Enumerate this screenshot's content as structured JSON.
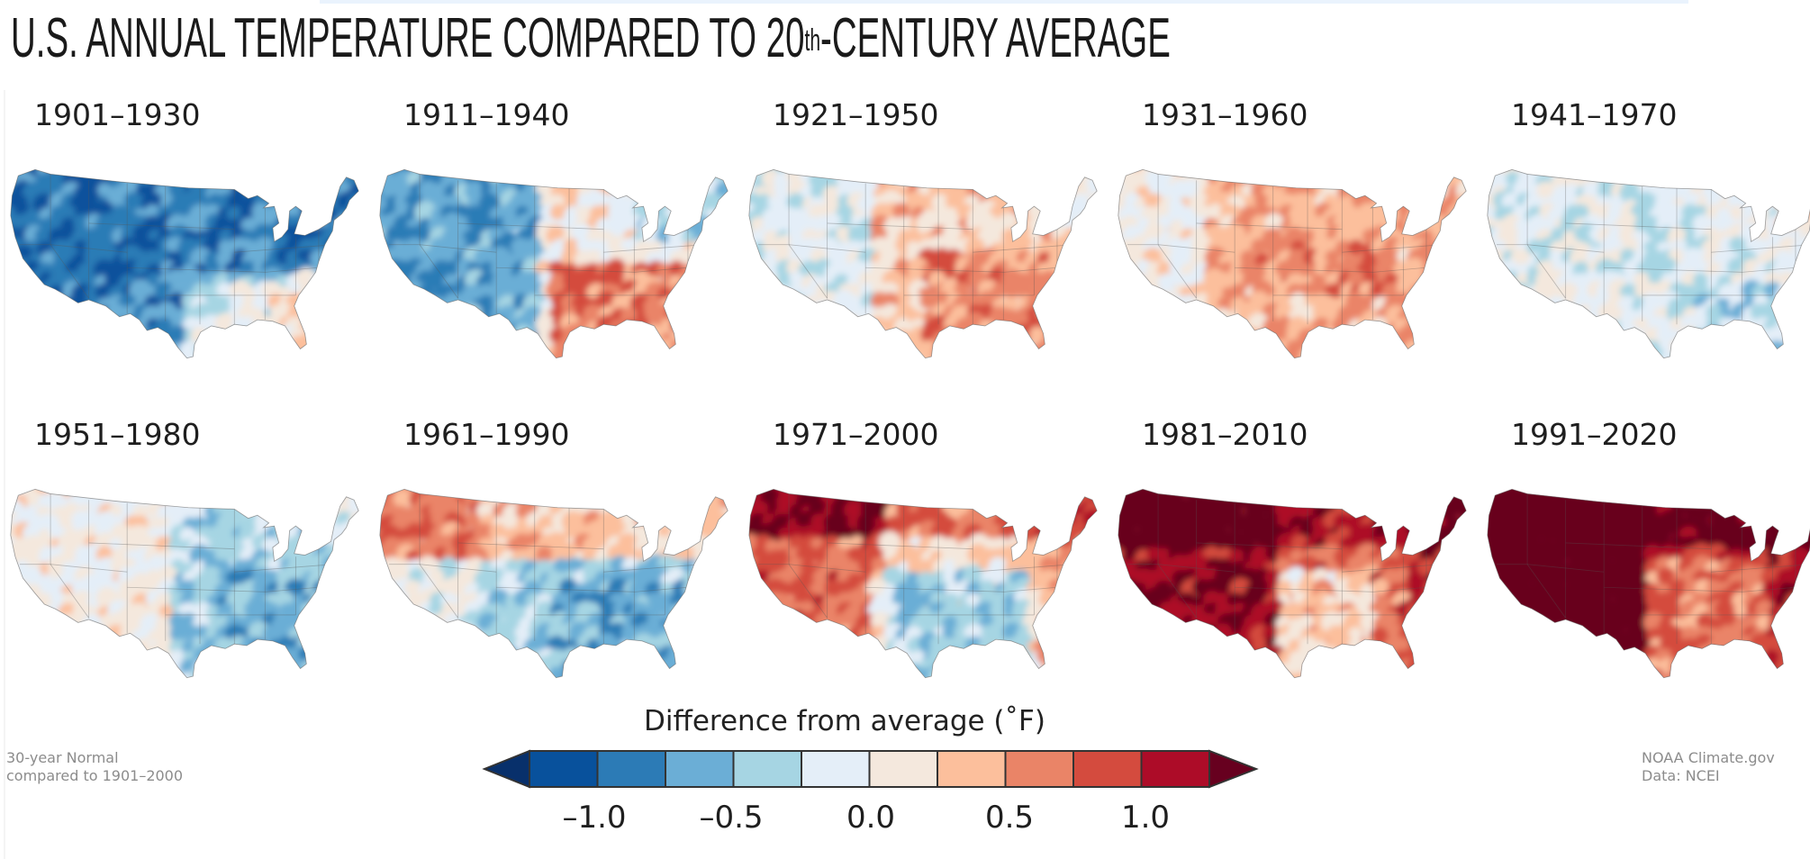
{
  "title": {
    "main": "U.S. ANNUAL TEMPERATURE COMPARED TO 20",
    "superscript": "th",
    "rest": "-CENTURY AVERAGE"
  },
  "panels": [
    {
      "label": "1901–1930",
      "pattern": "cold",
      "base": -0.7
    },
    {
      "label": "1911–1940",
      "pattern": "west-cold-southeast-warm",
      "base": -0.2
    },
    {
      "label": "1921–1950",
      "pattern": "east-warm",
      "base": 0.2
    },
    {
      "label": "1931–1960",
      "pattern": "warm-central",
      "base": 0.25
    },
    {
      "label": "1941–1970",
      "pattern": "near-normal",
      "base": -0.05
    },
    {
      "label": "1951–1980",
      "pattern": "southeast-cool",
      "base": -0.15
    },
    {
      "label": "1961–1990",
      "pattern": "north-warm-south-cool",
      "base": -0.05
    },
    {
      "label": "1971–2000",
      "pattern": "west-north-warm",
      "base": 0.35
    },
    {
      "label": "1981–2010",
      "pattern": "warm",
      "base": 0.8
    },
    {
      "label": "1991–2020",
      "pattern": "very-warm",
      "base": 1.1
    }
  ],
  "legend": {
    "title": "Difference from average (˚F)",
    "ticks": [
      "–1.0",
      "–0.5",
      "0.0",
      "0.5",
      "1.0"
    ],
    "colors": [
      "#08306b",
      "#08519c",
      "#2c7bb6",
      "#6baed6",
      "#a6d5e3",
      "#e4eef8",
      "#f4e8dd",
      "#fcbf9c",
      "#ea8467",
      "#d44b3e",
      "#ad0c28",
      "#67001f"
    ]
  },
  "notes": {
    "left_line1": "30-year Normal",
    "left_line2": "compared to 1901–2000",
    "right_line1": "NOAA Climate.gov",
    "right_line2": "Data: NCEI"
  }
}
